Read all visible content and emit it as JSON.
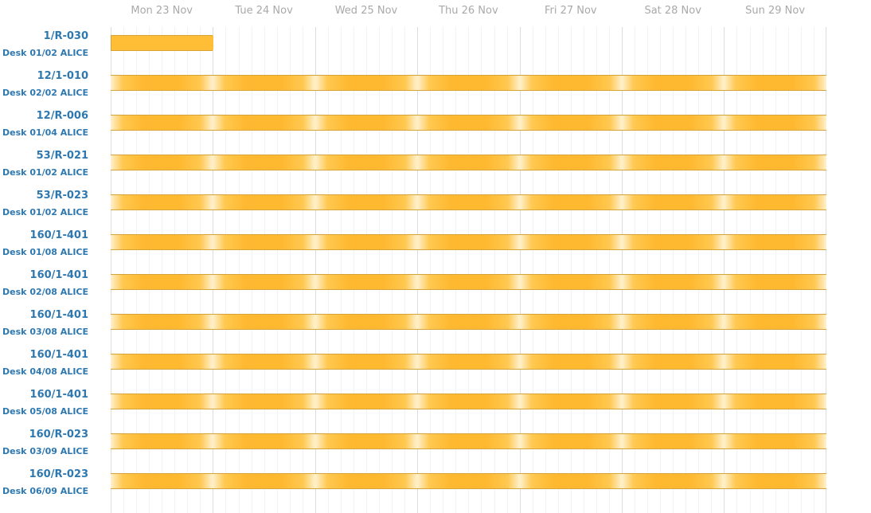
{
  "days": [
    {
      "label": "Mon 23 Nov"
    },
    {
      "label": "Tue 24 Nov"
    },
    {
      "label": "Wed 25 Nov"
    },
    {
      "label": "Thu 26 Nov"
    },
    {
      "label": "Fri 27 Nov"
    },
    {
      "label": "Sat 28 Nov"
    },
    {
      "label": "Sun 29 Nov"
    }
  ],
  "resources": [
    {
      "name": "1/R-030",
      "desk": "Desk 01/02 ALICE",
      "booking_days": [
        0,
        0
      ]
    },
    {
      "name": "12/1-010",
      "desk": "Desk 02/02 ALICE",
      "booking_days": [
        0,
        6
      ]
    },
    {
      "name": "12/R-006",
      "desk": "Desk 01/04 ALICE",
      "booking_days": [
        0,
        6
      ]
    },
    {
      "name": "53/R-021",
      "desk": "Desk 01/02 ALICE",
      "booking_days": [
        0,
        6
      ]
    },
    {
      "name": "53/R-023",
      "desk": "Desk 01/02 ALICE",
      "booking_days": [
        0,
        6
      ]
    },
    {
      "name": "160/1-401",
      "desk": "Desk 01/08 ALICE",
      "booking_days": [
        0,
        6
      ]
    },
    {
      "name": "160/1-401",
      "desk": "Desk 02/08 ALICE",
      "booking_days": [
        0,
        6
      ]
    },
    {
      "name": "160/1-401",
      "desk": "Desk 03/08 ALICE",
      "booking_days": [
        0,
        6
      ]
    },
    {
      "name": "160/1-401",
      "desk": "Desk 04/08 ALICE",
      "booking_days": [
        0,
        6
      ]
    },
    {
      "name": "160/1-401",
      "desk": "Desk 05/08 ALICE",
      "booking_days": [
        0,
        6
      ]
    },
    {
      "name": "160/R-023",
      "desk": "Desk 03/09 ALICE",
      "booking_days": [
        0,
        6
      ]
    },
    {
      "name": "160/R-023",
      "desk": "Desk 06/09 ALICE",
      "booking_days": [
        0,
        6
      ]
    }
  ],
  "colors": {
    "booking": "#ffb931",
    "resource_text": "#2e78b0",
    "header_text": "#a9a9a9"
  }
}
